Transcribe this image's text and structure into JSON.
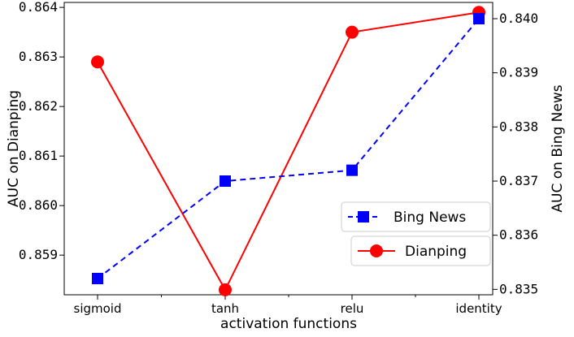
{
  "chart_data": {
    "type": "line",
    "xlabel": "activation functions",
    "categories": [
      "sigmoid",
      "tanh",
      "relu",
      "identity"
    ],
    "left_axis": {
      "label": "AUC on Dianping",
      "ylim": [
        0.8582,
        0.8641
      ],
      "ticks": [
        0.859,
        0.86,
        0.861,
        0.862,
        0.863,
        0.864
      ],
      "tick_labels": [
        "0.859",
        "0.860",
        "0.861",
        "0.862",
        "0.863",
        "0.864"
      ]
    },
    "right_axis": {
      "label": "AUC on Bing News",
      "ylim": [
        0.8349,
        0.8403
      ],
      "ticks": [
        0.835,
        0.836,
        0.837,
        0.838,
        0.839,
        0.84
      ],
      "tick_labels": [
        "0.835",
        "0.836",
        "0.837",
        "0.838",
        "0.839",
        "0.840"
      ]
    },
    "series": [
      {
        "name": "Dianping",
        "axis": "left",
        "color": "#ff0000",
        "line_style": "solid",
        "marker": "circle",
        "values": [
          0.8629,
          0.8583,
          0.8635,
          0.8639
        ]
      },
      {
        "name": "Bing News",
        "axis": "right",
        "color": "#0000ff",
        "line_style": "dashed",
        "marker": "square",
        "values": [
          0.8352,
          0.837,
          0.8372,
          0.84
        ]
      }
    ],
    "legend": {
      "placement": "lower-right",
      "entries": [
        "Bing News",
        "Dianping"
      ]
    }
  }
}
